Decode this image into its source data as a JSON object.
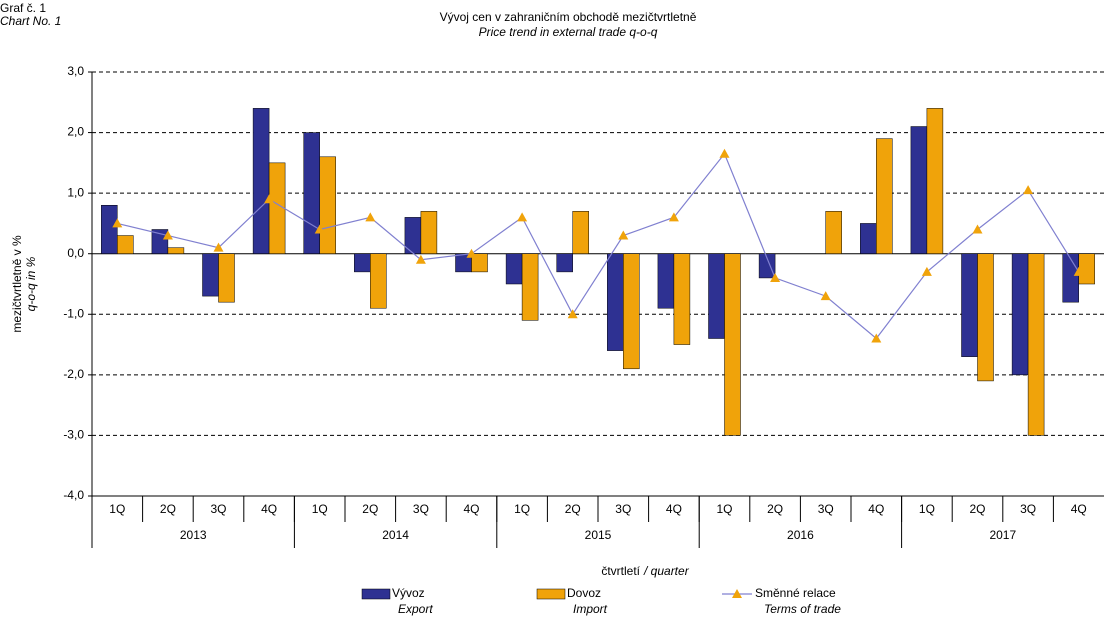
{
  "chart_data": {
    "type": "bar_line",
    "label": "Graf č. 1",
    "label_en": "Chart No. 1",
    "title": "Vývoj cen v zahraničním obchodě mezičtvrtletně",
    "subtitle": "Price trend in external trade q-o-q",
    "y_label": "mezičtvrtletně v %",
    "y_label_en": "q-o-q  in %",
    "x_label": "čtvrtletí",
    "x_label_en": "/ quarter",
    "categories": [
      "1Q",
      "2Q",
      "3Q",
      "4Q",
      "1Q",
      "2Q",
      "3Q",
      "4Q",
      "1Q",
      "2Q",
      "3Q",
      "4Q",
      "1Q",
      "2Q",
      "3Q",
      "4Q",
      "1Q",
      "2Q",
      "3Q",
      "4Q"
    ],
    "years": [
      "2013",
      "2014",
      "2015",
      "2016",
      "2017"
    ],
    "series": [
      {
        "name": "Vývoz",
        "name_en": "Export",
        "type": "bar",
        "color": "#2e3192",
        "values": [
          0.8,
          0.4,
          -0.7,
          2.4,
          2.0,
          -0.3,
          0.6,
          -0.3,
          -0.5,
          -0.3,
          -1.6,
          -0.9,
          -1.4,
          -0.4,
          0.0,
          0.5,
          2.1,
          -1.7,
          -2.0,
          -0.8
        ]
      },
      {
        "name": "Dovoz",
        "name_en": "Import",
        "type": "bar",
        "color": "#f0a30a",
        "values": [
          0.3,
          0.1,
          -0.8,
          1.5,
          1.6,
          -0.9,
          0.7,
          -0.3,
          -1.1,
          0.7,
          -1.9,
          -1.5,
          -3.0,
          0.0,
          0.7,
          1.9,
          2.4,
          -2.1,
          -3.0,
          -0.5
        ]
      },
      {
        "name": "Směnné relace",
        "name_en": "Terms of trade",
        "type": "line",
        "color": "#8080d0",
        "marker_color": "#f0a30a",
        "values": [
          0.5,
          0.3,
          0.1,
          0.9,
          0.4,
          0.6,
          -0.1,
          0.0,
          0.6,
          -1.0,
          0.3,
          0.6,
          1.65,
          -0.4,
          -0.7,
          -1.4,
          -0.3,
          0.4,
          1.05,
          -0.3
        ]
      }
    ],
    "ylim": [
      -4,
      3
    ],
    "yticks": [
      {
        "value": -4,
        "label": "-4,0"
      },
      {
        "value": -3,
        "label": "-3,0"
      },
      {
        "value": -2,
        "label": "-2,0"
      },
      {
        "value": -1,
        "label": "-1,0"
      },
      {
        "value": 0,
        "label": "0,0"
      },
      {
        "value": 1,
        "label": "1,0"
      },
      {
        "value": 2,
        "label": "2,0"
      },
      {
        "value": 3,
        "label": "3,0"
      }
    ],
    "grid": true
  }
}
